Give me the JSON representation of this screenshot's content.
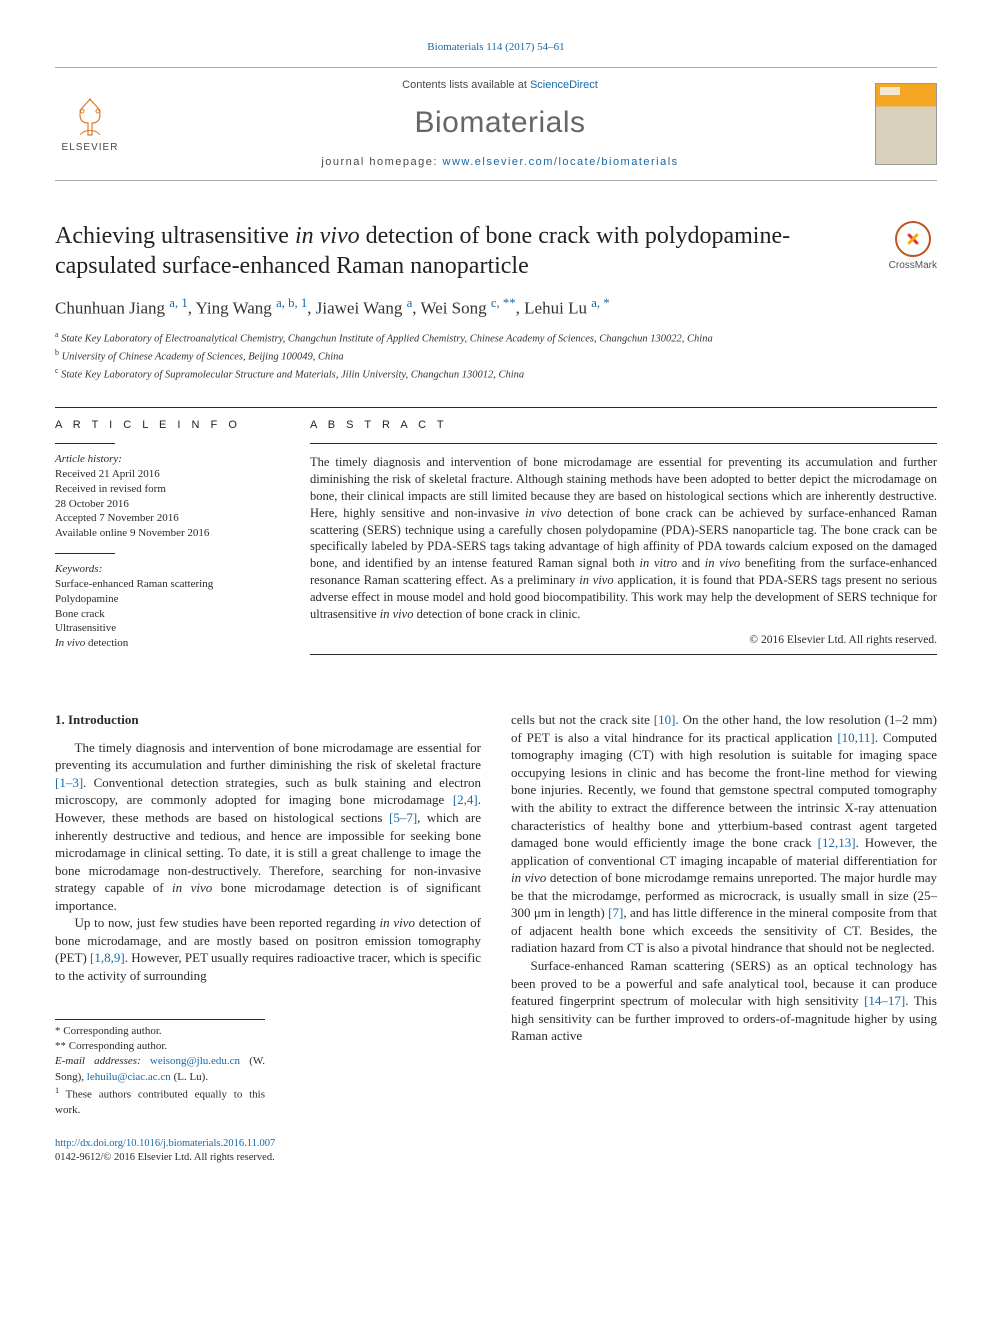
{
  "citation": {
    "journal": "Biomaterials",
    "vol_issue": "114 (2017) 54–61"
  },
  "masthead": {
    "contents_prefix": "Contents lists available at ",
    "contents_link": "ScienceDirect",
    "journal_name": "Biomaterials",
    "homepage_prefix": "journal homepage: ",
    "homepage_url": "www.elsevier.com/locate/biomaterials",
    "publisher_word": "ELSEVIER"
  },
  "crossmark_label": "CrossMark",
  "title_html": "Achieving ultrasensitive <em>in vivo</em> detection of bone crack with polydopamine-capsulated surface-enhanced Raman nanoparticle",
  "authors_html": "Chunhuan Jiang <sup><a href=\"#\">a, 1</a></sup>, Ying Wang <sup><a href=\"#\">a, b, 1</a></sup>, Jiawei Wang <sup><a href=\"#\">a</a></sup>, Wei Song <sup><a href=\"#\">c, **</a></sup>, Lehui Lu <sup><a href=\"#\">a, *</a></sup>",
  "affiliations": [
    {
      "sup": "a",
      "text": "State Key Laboratory of Electroanalytical Chemistry, Changchun Institute of Applied Chemistry, Chinese Academy of Sciences, Changchun 130022, China"
    },
    {
      "sup": "b",
      "text": "University of Chinese Academy of Sciences, Beijing 100049, China"
    },
    {
      "sup": "c",
      "text": "State Key Laboratory of Supramolecular Structure and Materials, Jilin University, Changchun 130012, China"
    }
  ],
  "article_info": {
    "heading": "A R T I C L E   I N F O",
    "history_label": "Article history:",
    "history": [
      "Received 21 April 2016",
      "Received in revised form",
      "28 October 2016",
      "Accepted 7 November 2016",
      "Available online 9 November 2016"
    ],
    "keywords_label": "Keywords:",
    "keywords": [
      "Surface-enhanced Raman scattering",
      "Polydopamine",
      "Bone crack",
      "Ultrasensitive",
      "In vivo detection"
    ]
  },
  "abstract": {
    "heading": "A B S T R A C T",
    "body_html": "The timely diagnosis and intervention of bone microdamage are essential for preventing its accumulation and further diminishing the risk of skeletal fracture. Although staining methods have been adopted to better depict the microdamage on bone, their clinical impacts are still limited because they are based on histological sections which are inherently destructive. Here, highly sensitive and non-invasive <em>in vivo</em> detection of bone crack can be achieved by surface-enhanced Raman scattering (SERS) technique using a carefully chosen polydopamine (PDA)-SERS nanoparticle tag. The bone crack can be specifically labeled by PDA-SERS tags taking advantage of high affinity of PDA towards calcium exposed on the damaged bone, and identified by an intense featured Raman signal both <em>in vitro</em> and <em>in vivo</em> benefiting from the surface-enhanced resonance Raman scattering effect. As a preliminary <em>in vivo</em> application, it is found that PDA-SERS tags present no serious adverse effect in mouse model and hold good biocompatibility. This work may help the development of SERS technique for ultrasensitive <em>in vivo</em> detection of bone crack in clinic.",
    "copyright": "© 2016 Elsevier Ltd. All rights reserved."
  },
  "body": {
    "section_heading": "1. Introduction",
    "col1_paras_html": [
      "The timely diagnosis and intervention of bone microdamage are essential for preventing its accumulation and further diminishing the risk of skeletal fracture <a href=\"#\">[1–3]</a>. Conventional detection strategies, such as bulk staining and electron microscopy, are commonly adopted for imaging bone microdamage <a href=\"#\">[2,4]</a>. However, these methods are based on histological sections <a href=\"#\">[5–7]</a>, which are inherently destructive and tedious, and hence are impossible for seeking bone microdamage in clinical setting. To date, it is still a great challenge to image the bone microdamage non-destructively. Therefore, searching for non-invasive strategy capable of <em>in vivo</em> bone microdamage detection is of significant importance.",
      "Up to now, just few studies have been reported regarding <em>in vivo</em> detection of bone microdamage, and are mostly based on positron emission tomography (PET) <a href=\"#\">[1,8,9]</a>. However, PET usually requires radioactive tracer, which is specific to the activity of surrounding"
    ],
    "col2_paras_html": [
      "cells but not the crack site <a href=\"#\">[10]</a>. On the other hand, the low resolution (1–2 mm) of PET is also a vital hindrance for its practical application <a href=\"#\">[10,11]</a>. Computed tomography imaging (CT) with high resolution is suitable for imaging space occupying lesions in clinic and has become the front-line method for viewing bone injuries. Recently, we found that gemstone spectral computed tomography with the ability to extract the difference between the intrinsic X-ray attenuation characteristics of healthy bone and ytterbium-based contrast agent targeted damaged bone would efficiently image the bone crack <a href=\"#\">[12,13]</a>. However, the application of conventional CT imaging incapable of material differentiation for <em>in vivo</em> detection of bone microdamge remains unreported. The major hurdle may be that the microdamge, performed as microcrack, is usually small in size (25–300 μm in length) <a href=\"#\">[7]</a>, and has little difference in the mineral composite from that of adjacent health bone which exceeds the sensitivity of CT. Besides, the radiation hazard from CT is also a pivotal hindrance that should not be neglected.",
      "Surface-enhanced Raman scattering (SERS) as an optical technology has been proved to be a powerful and safe analytical tool, because it can produce featured fingerprint spectrum of molecular with high sensitivity <a href=\"#\">[14–17]</a>. This high sensitivity can be further improved to orders-of-magnitude higher by using Raman active"
    ]
  },
  "footnotes": {
    "lines_html": [
      "* Corresponding author.",
      "** Corresponding author.",
      "<em>E-mail addresses:</em> <a href=\"#\">weisong@jlu.edu.cn</a> (W. Song), <a href=\"#\">lehuilu@ciac.ac.cn</a> (L. Lu).",
      "<sup>1</sup> These authors contributed equally to this work."
    ]
  },
  "footer": {
    "doi": "http://dx.doi.org/10.1016/j.biomaterials.2016.11.007",
    "issn_line": "0142-9612/© 2016 Elsevier Ltd. All rights reserved."
  },
  "colors": {
    "link": "#1768a6",
    "text": "#2a2a2a",
    "journal_gray": "#666666"
  }
}
